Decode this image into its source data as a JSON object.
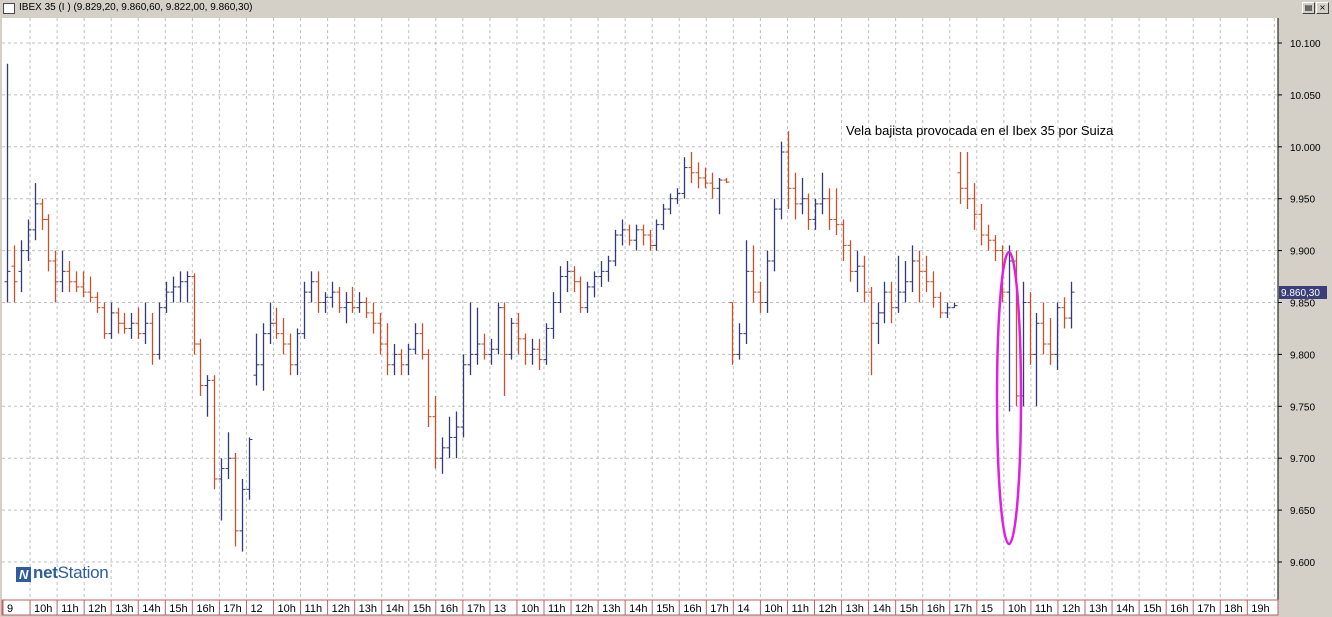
{
  "window": {
    "title": "IBEX 35 (I ) (9.829,20, 9.860,60, 9.822,00, 9.860,30)"
  },
  "colors": {
    "background": "#ffffff",
    "grid": "#c0c0c0",
    "up_bar": "#333a7a",
    "down_bar": "#c8502a",
    "annotation_ellipse": "#e020e0",
    "price_label_bg": "#3a3f7a",
    "axis_border": "#c06060"
  },
  "watermark": {
    "brand_prefix": "net",
    "brand_suffix": "Station",
    "icon": "netstation-logo-icon"
  },
  "chart_data": {
    "type": "ohlc",
    "title": "",
    "annotation": "Vela bajista provocada en el Ibex 35 por Suiza",
    "current_price_label": "9.860,30",
    "current_price": 9860.3,
    "ylim": [
      9580,
      10120
    ],
    "y_ticks": [
      9600,
      9650,
      9700,
      9750,
      9800,
      9850,
      9900,
      9950,
      10000,
      10050,
      10100
    ],
    "y_tick_labels": [
      "9.600",
      "9.650",
      "9.700",
      "9.750",
      "9.800",
      "9.850",
      "9.900",
      "9.950",
      "10.000",
      "10.050",
      "10.100"
    ],
    "grid": true,
    "x_tick_labels": [
      "9",
      "10h",
      "11h",
      "12h",
      "13h",
      "14h",
      "15h",
      "16h",
      "17h",
      "12",
      "10h",
      "11h",
      "12h",
      "13h",
      "14h",
      "15h",
      "16h",
      "17h",
      "13",
      "10h",
      "11h",
      "12h",
      "13h",
      "14h",
      "15h",
      "16h",
      "17h",
      "14",
      "10h",
      "11h",
      "12h",
      "13h",
      "14h",
      "15h",
      "16h",
      "17h",
      "15",
      "10h",
      "11h",
      "12h",
      "13h",
      "14h",
      "15h",
      "16h",
      "17h",
      "18h",
      "19h"
    ],
    "bars": [
      {
        "o": 9870,
        "h": 10080,
        "l": 9850,
        "c": 9880
      },
      {
        "o": 9885,
        "h": 9905,
        "l": 9850,
        "c": 9870
      },
      {
        "o": 9880,
        "h": 9910,
        "l": 9860,
        "c": 9900
      },
      {
        "o": 9900,
        "h": 9930,
        "l": 9890,
        "c": 9920
      },
      {
        "o": 9920,
        "h": 9965,
        "l": 9910,
        "c": 9945
      },
      {
        "o": 9945,
        "h": 9950,
        "l": 9920,
        "c": 9930
      },
      {
        "o": 9930,
        "h": 9935,
        "l": 9880,
        "c": 9890
      },
      {
        "o": 9890,
        "h": 9900,
        "l": 9850,
        "c": 9870
      },
      {
        "o": 9870,
        "h": 9900,
        "l": 9860,
        "c": 9880
      },
      {
        "o": 9880,
        "h": 9890,
        "l": 9860,
        "c": 9870
      },
      {
        "o": 9870,
        "h": 9880,
        "l": 9860,
        "c": 9865
      },
      {
        "o": 9865,
        "h": 9880,
        "l": 9855,
        "c": 9860
      },
      {
        "o": 9860,
        "h": 9875,
        "l": 9850,
        "c": 9855
      },
      {
        "o": 9855,
        "h": 9860,
        "l": 9840,
        "c": 9845
      },
      {
        "o": 9845,
        "h": 9850,
        "l": 9815,
        "c": 9820
      },
      {
        "o": 9820,
        "h": 9850,
        "l": 9815,
        "c": 9840
      },
      {
        "o": 9840,
        "h": 9845,
        "l": 9820,
        "c": 9830
      },
      {
        "o": 9830,
        "h": 9840,
        "l": 9820,
        "c": 9825
      },
      {
        "o": 9825,
        "h": 9840,
        "l": 9815,
        "c": 9830
      },
      {
        "o": 9830,
        "h": 9845,
        "l": 9815,
        "c": 9820
      },
      {
        "o": 9820,
        "h": 9850,
        "l": 9810,
        "c": 9830
      },
      {
        "o": 9830,
        "h": 9840,
        "l": 9790,
        "c": 9800
      },
      {
        "o": 9800,
        "h": 9850,
        "l": 9795,
        "c": 9845
      },
      {
        "o": 9845,
        "h": 9870,
        "l": 9840,
        "c": 9860
      },
      {
        "o": 9860,
        "h": 9875,
        "l": 9850,
        "c": 9865
      },
      {
        "o": 9865,
        "h": 9880,
        "l": 9850,
        "c": 9870
      },
      {
        "o": 9870,
        "h": 9880,
        "l": 9850,
        "c": 9875
      },
      {
        "o": 9875,
        "h": 9878,
        "l": 9800,
        "c": 9810
      },
      {
        "o": 9810,
        "h": 9815,
        "l": 9760,
        "c": 9770
      },
      {
        "o": 9770,
        "h": 9780,
        "l": 9740,
        "c": 9775
      },
      {
        "o": 9775,
        "h": 9780,
        "l": 9670,
        "c": 9680
      },
      {
        "o": 9680,
        "h": 9700,
        "l": 9640,
        "c": 9690
      },
      {
        "o": 9690,
        "h": 9725,
        "l": 9680,
        "c": 9700
      },
      {
        "o": 9700,
        "h": 9705,
        "l": 9615,
        "c": 9630
      },
      {
        "o": 9630,
        "h": 9680,
        "l": 9610,
        "c": 9670
      },
      {
        "o": 9670,
        "h": 9720,
        "l": 9660,
        "c": 9718
      },
      {
        "o": 9780,
        "h": 9820,
        "l": 9770,
        "c": 9790
      },
      {
        "o": 9790,
        "h": 9830,
        "l": 9765,
        "c": 9820
      },
      {
        "o": 9820,
        "h": 9850,
        "l": 9810,
        "c": 9830
      },
      {
        "o": 9830,
        "h": 9845,
        "l": 9815,
        "c": 9820
      },
      {
        "o": 9820,
        "h": 9835,
        "l": 9800,
        "c": 9810
      },
      {
        "o": 9810,
        "h": 9820,
        "l": 9780,
        "c": 9790
      },
      {
        "o": 9790,
        "h": 9825,
        "l": 9780,
        "c": 9820
      },
      {
        "o": 9820,
        "h": 9870,
        "l": 9815,
        "c": 9860
      },
      {
        "o": 9860,
        "h": 9880,
        "l": 9850,
        "c": 9870
      },
      {
        "o": 9870,
        "h": 9880,
        "l": 9840,
        "c": 9850
      },
      {
        "o": 9850,
        "h": 9860,
        "l": 9840,
        "c": 9855
      },
      {
        "o": 9855,
        "h": 9870,
        "l": 9845,
        "c": 9860
      },
      {
        "o": 9860,
        "h": 9865,
        "l": 9840,
        "c": 9845
      },
      {
        "o": 9845,
        "h": 9860,
        "l": 9830,
        "c": 9850
      },
      {
        "o": 9850,
        "h": 9865,
        "l": 9840,
        "c": 9845
      },
      {
        "o": 9845,
        "h": 9860,
        "l": 9840,
        "c": 9850
      },
      {
        "o": 9850,
        "h": 9855,
        "l": 9835,
        "c": 9840
      },
      {
        "o": 9840,
        "h": 9850,
        "l": 9820,
        "c": 9830
      },
      {
        "o": 9830,
        "h": 9840,
        "l": 9800,
        "c": 9810
      },
      {
        "o": 9810,
        "h": 9830,
        "l": 9780,
        "c": 9790
      },
      {
        "o": 9790,
        "h": 9810,
        "l": 9780,
        "c": 9800
      },
      {
        "o": 9800,
        "h": 9805,
        "l": 9780,
        "c": 9790
      },
      {
        "o": 9790,
        "h": 9810,
        "l": 9780,
        "c": 9805
      },
      {
        "o": 9805,
        "h": 9830,
        "l": 9800,
        "c": 9820
      },
      {
        "o": 9820,
        "h": 9830,
        "l": 9795,
        "c": 9800
      },
      {
        "o": 9800,
        "h": 9805,
        "l": 9730,
        "c": 9740
      },
      {
        "o": 9740,
        "h": 9760,
        "l": 9690,
        "c": 9700
      },
      {
        "o": 9700,
        "h": 9720,
        "l": 9685,
        "c": 9710
      },
      {
        "o": 9710,
        "h": 9740,
        "l": 9700,
        "c": 9720
      },
      {
        "o": 9720,
        "h": 9745,
        "l": 9700,
        "c": 9730
      },
      {
        "o": 9730,
        "h": 9800,
        "l": 9720,
        "c": 9790
      },
      {
        "o": 9790,
        "h": 9850,
        "l": 9780,
        "c": 9800
      },
      {
        "o": 9800,
        "h": 9845,
        "l": 9790,
        "c": 9810
      },
      {
        "o": 9810,
        "h": 9820,
        "l": 9795,
        "c": 9800
      },
      {
        "o": 9800,
        "h": 9815,
        "l": 9790,
        "c": 9805
      },
      {
        "o": 9805,
        "h": 9850,
        "l": 9800,
        "c": 9845
      },
      {
        "o": 9845,
        "h": 9850,
        "l": 9760,
        "c": 9800
      },
      {
        "o": 9800,
        "h": 9835,
        "l": 9795,
        "c": 9830
      },
      {
        "o": 9830,
        "h": 9840,
        "l": 9800,
        "c": 9815
      },
      {
        "o": 9815,
        "h": 9820,
        "l": 9790,
        "c": 9800
      },
      {
        "o": 9800,
        "h": 9815,
        "l": 9790,
        "c": 9805
      },
      {
        "o": 9805,
        "h": 9815,
        "l": 9785,
        "c": 9795
      },
      {
        "o": 9795,
        "h": 9830,
        "l": 9790,
        "c": 9825
      },
      {
        "o": 9825,
        "h": 9860,
        "l": 9815,
        "c": 9850
      },
      {
        "o": 9850,
        "h": 9885,
        "l": 9840,
        "c": 9875
      },
      {
        "o": 9875,
        "h": 9890,
        "l": 9860,
        "c": 9880
      },
      {
        "o": 9880,
        "h": 9885,
        "l": 9860,
        "c": 9870
      },
      {
        "o": 9870,
        "h": 9875,
        "l": 9840,
        "c": 9845
      },
      {
        "o": 9845,
        "h": 9870,
        "l": 9840,
        "c": 9865
      },
      {
        "o": 9865,
        "h": 9880,
        "l": 9855,
        "c": 9875
      },
      {
        "o": 9875,
        "h": 9890,
        "l": 9865,
        "c": 9880
      },
      {
        "o": 9880,
        "h": 9895,
        "l": 9870,
        "c": 9890
      },
      {
        "o": 9890,
        "h": 9920,
        "l": 9885,
        "c": 9915
      },
      {
        "o": 9915,
        "h": 9930,
        "l": 9905,
        "c": 9920
      },
      {
        "o": 9920,
        "h": 9925,
        "l": 9905,
        "c": 9910
      },
      {
        "o": 9910,
        "h": 9925,
        "l": 9900,
        "c": 9920
      },
      {
        "o": 9920,
        "h": 9925,
        "l": 9905,
        "c": 9915
      },
      {
        "o": 9915,
        "h": 9920,
        "l": 9900,
        "c": 9905
      },
      {
        "o": 9905,
        "h": 9930,
        "l": 9900,
        "c": 9925
      },
      {
        "o": 9925,
        "h": 9945,
        "l": 9920,
        "c": 9940
      },
      {
        "o": 9940,
        "h": 9955,
        "l": 9935,
        "c": 9950
      },
      {
        "o": 9950,
        "h": 9960,
        "l": 9945,
        "c": 9955
      },
      {
        "o": 9955,
        "h": 9990,
        "l": 9950,
        "c": 9980
      },
      {
        "o": 9980,
        "h": 9995,
        "l": 9965,
        "c": 9975
      },
      {
        "o": 9975,
        "h": 9985,
        "l": 9960,
        "c": 9970
      },
      {
        "o": 9970,
        "h": 9980,
        "l": 9960,
        "c": 9965
      },
      {
        "o": 9965,
        "h": 9975,
        "l": 9950,
        "c": 9960
      },
      {
        "o": 9960,
        "h": 9970,
        "l": 9935,
        "c": 9968
      },
      {
        "o": 9968,
        "h": 9970,
        "l": 9965,
        "c": 9966
      },
      {
        "o": 9850,
        "h": 9850,
        "l": 9790,
        "c": 9800
      },
      {
        "o": 9800,
        "h": 9830,
        "l": 9795,
        "c": 9820
      },
      {
        "o": 9820,
        "h": 9910,
        "l": 9810,
        "c": 9880
      },
      {
        "o": 9880,
        "h": 9905,
        "l": 9850,
        "c": 9860
      },
      {
        "o": 9860,
        "h": 9870,
        "l": 9840,
        "c": 9850
      },
      {
        "o": 9850,
        "h": 9900,
        "l": 9840,
        "c": 9890
      },
      {
        "o": 9890,
        "h": 9950,
        "l": 9880,
        "c": 9940
      },
      {
        "o": 9940,
        "h": 10005,
        "l": 9930,
        "c": 9995
      },
      {
        "o": 9995,
        "h": 10015,
        "l": 9940,
        "c": 9960
      },
      {
        "o": 9960,
        "h": 9975,
        "l": 9930,
        "c": 9945
      },
      {
        "o": 9945,
        "h": 9970,
        "l": 9935,
        "c": 9950
      },
      {
        "o": 9950,
        "h": 9955,
        "l": 9920,
        "c": 9930
      },
      {
        "o": 9930,
        "h": 9950,
        "l": 9920,
        "c": 9945
      },
      {
        "o": 9945,
        "h": 9975,
        "l": 9935,
        "c": 9950
      },
      {
        "o": 9950,
        "h": 9960,
        "l": 9920,
        "c": 9930
      },
      {
        "o": 9930,
        "h": 9960,
        "l": 9915,
        "c": 9925
      },
      {
        "o": 9925,
        "h": 9930,
        "l": 9890,
        "c": 9905
      },
      {
        "o": 9905,
        "h": 9910,
        "l": 9870,
        "c": 9880
      },
      {
        "o": 9880,
        "h": 9900,
        "l": 9860,
        "c": 9885
      },
      {
        "o": 9885,
        "h": 9895,
        "l": 9850,
        "c": 9860
      },
      {
        "o": 9860,
        "h": 9865,
        "l": 9780,
        "c": 9830
      },
      {
        "o": 9830,
        "h": 9850,
        "l": 9810,
        "c": 9840
      },
      {
        "o": 9840,
        "h": 9870,
        "l": 9830,
        "c": 9860
      },
      {
        "o": 9860,
        "h": 9870,
        "l": 9830,
        "c": 9845
      },
      {
        "o": 9845,
        "h": 9895,
        "l": 9840,
        "c": 9860
      },
      {
        "o": 9860,
        "h": 9890,
        "l": 9850,
        "c": 9870
      },
      {
        "o": 9870,
        "h": 9905,
        "l": 9860,
        "c": 9890
      },
      {
        "o": 9890,
        "h": 9900,
        "l": 9850,
        "c": 9880
      },
      {
        "o": 9880,
        "h": 9895,
        "l": 9860,
        "c": 9870
      },
      {
        "o": 9870,
        "h": 9880,
        "l": 9845,
        "c": 9855
      },
      {
        "o": 9855,
        "h": 9860,
        "l": 9835,
        "c": 9840
      },
      {
        "o": 9840,
        "h": 9850,
        "l": 9835,
        "c": 9845
      },
      {
        "o": 9845,
        "h": 9850,
        "l": 9845,
        "c": 9847
      },
      {
        "o": 9975,
        "h": 9995,
        "l": 9945,
        "c": 9960
      },
      {
        "o": 9960,
        "h": 9995,
        "l": 9940,
        "c": 9950
      },
      {
        "o": 9950,
        "h": 9965,
        "l": 9920,
        "c": 9935
      },
      {
        "o": 9935,
        "h": 9945,
        "l": 9905,
        "c": 9915
      },
      {
        "o": 9915,
        "h": 9925,
        "l": 9900,
        "c": 9910
      },
      {
        "o": 9910,
        "h": 9915,
        "l": 9890,
        "c": 9900
      },
      {
        "o": 9900,
        "h": 9905,
        "l": 9850,
        "c": 9860
      },
      {
        "o": 9860,
        "h": 9905,
        "l": 9745,
        "c": 9890
      },
      {
        "o": 9890,
        "h": 9900,
        "l": 9750,
        "c": 9760
      },
      {
        "o": 9760,
        "h": 9870,
        "l": 9750,
        "c": 9850
      },
      {
        "o": 9850,
        "h": 9860,
        "l": 9790,
        "c": 9800
      },
      {
        "o": 9800,
        "h": 9840,
        "l": 9750,
        "c": 9830
      },
      {
        "o": 9830,
        "h": 9850,
        "l": 9800,
        "c": 9810
      },
      {
        "o": 9810,
        "h": 9835,
        "l": 9790,
        "c": 9800
      },
      {
        "o": 9800,
        "h": 9850,
        "l": 9785,
        "c": 9845
      },
      {
        "o": 9845,
        "h": 9855,
        "l": 9825,
        "c": 9835
      },
      {
        "o": 9835,
        "h": 9870,
        "l": 9825,
        "c": 9860
      }
    ]
  }
}
